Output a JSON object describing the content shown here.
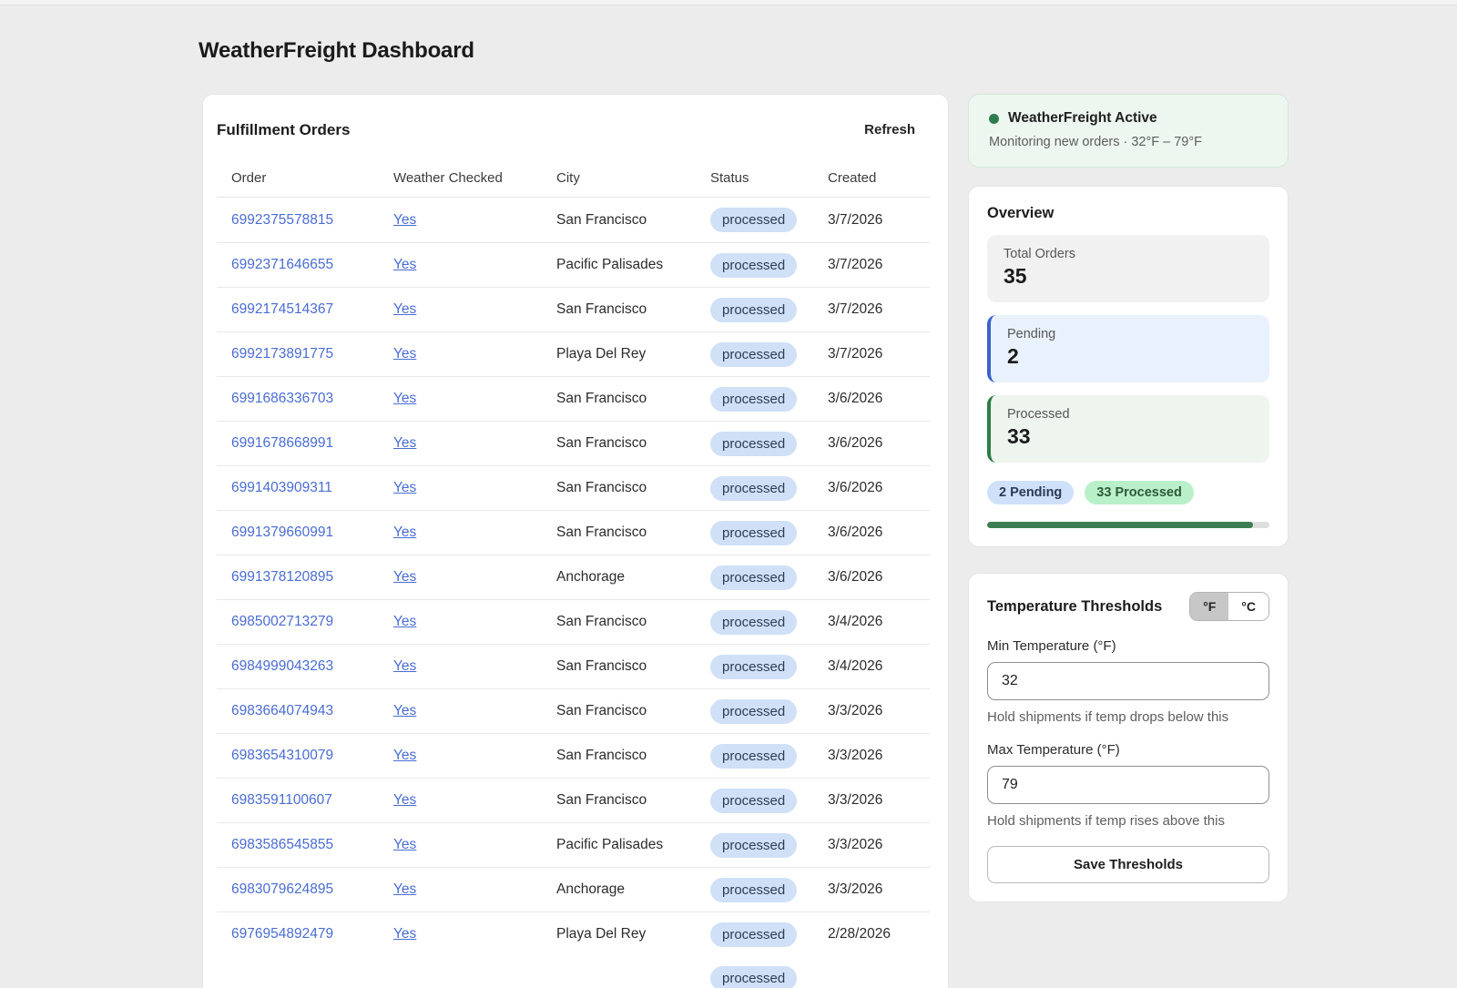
{
  "page": {
    "title": "WeatherFreight Dashboard"
  },
  "orders_panel": {
    "title": "Fulfillment Orders",
    "refresh_label": "Refresh",
    "columns": [
      "Order",
      "Weather Checked",
      "City",
      "Status",
      "Created"
    ],
    "rows": [
      {
        "order": "6992375578815",
        "weather_checked": "Yes",
        "city": "San Francisco",
        "status": "processed",
        "created": "3/7/2026"
      },
      {
        "order": "6992371646655",
        "weather_checked": "Yes",
        "city": "Pacific Palisades",
        "status": "processed",
        "created": "3/7/2026"
      },
      {
        "order": "6992174514367",
        "weather_checked": "Yes",
        "city": "San Francisco",
        "status": "processed",
        "created": "3/7/2026"
      },
      {
        "order": "6992173891775",
        "weather_checked": "Yes",
        "city": "Playa Del Rey",
        "status": "processed",
        "created": "3/7/2026"
      },
      {
        "order": "6991686336703",
        "weather_checked": "Yes",
        "city": "San Francisco",
        "status": "processed",
        "created": "3/6/2026"
      },
      {
        "order": "6991678668991",
        "weather_checked": "Yes",
        "city": "San Francisco",
        "status": "processed",
        "created": "3/6/2026"
      },
      {
        "order": "6991403909311",
        "weather_checked": "Yes",
        "city": "San Francisco",
        "status": "processed",
        "created": "3/6/2026"
      },
      {
        "order": "6991379660991",
        "weather_checked": "Yes",
        "city": "San Francisco",
        "status": "processed",
        "created": "3/6/2026"
      },
      {
        "order": "6991378120895",
        "weather_checked": "Yes",
        "city": "Anchorage",
        "status": "processed",
        "created": "3/6/2026"
      },
      {
        "order": "6985002713279",
        "weather_checked": "Yes",
        "city": "San Francisco",
        "status": "processed",
        "created": "3/4/2026"
      },
      {
        "order": "6984999043263",
        "weather_checked": "Yes",
        "city": "San Francisco",
        "status": "processed",
        "created": "3/4/2026"
      },
      {
        "order": "6983664074943",
        "weather_checked": "Yes",
        "city": "San Francisco",
        "status": "processed",
        "created": "3/3/2026"
      },
      {
        "order": "6983654310079",
        "weather_checked": "Yes",
        "city": "San Francisco",
        "status": "processed",
        "created": "3/3/2026"
      },
      {
        "order": "6983591100607",
        "weather_checked": "Yes",
        "city": "San Francisco",
        "status": "processed",
        "created": "3/3/2026"
      },
      {
        "order": "6983586545855",
        "weather_checked": "Yes",
        "city": "Pacific Palisades",
        "status": "processed",
        "created": "3/3/2026"
      },
      {
        "order": "6983079624895",
        "weather_checked": "Yes",
        "city": "Anchorage",
        "status": "processed",
        "created": "3/3/2026"
      },
      {
        "order": "6976954892479",
        "weather_checked": "Yes",
        "city": "Playa Del Rey",
        "status": "processed",
        "created": "2/28/2026"
      }
    ],
    "partial_row": {
      "status": "processed"
    }
  },
  "status_card": {
    "title": "WeatherFreight Active",
    "subtitle": "Monitoring new orders · 32°F – 79°F",
    "dot_color": "#2e7d4f"
  },
  "overview": {
    "title": "Overview",
    "stats": [
      {
        "label": "Total Orders",
        "value": "35",
        "variant": "neutral"
      },
      {
        "label": "Pending",
        "value": "2",
        "variant": "pending"
      },
      {
        "label": "Processed",
        "value": "33",
        "variant": "processed"
      }
    ],
    "badges": [
      {
        "label": "2 Pending",
        "variant": "pending"
      },
      {
        "label": "33 Processed",
        "variant": "processed"
      }
    ],
    "progress_percent": 94.3
  },
  "thresholds": {
    "title": "Temperature Thresholds",
    "unit_toggle": {
      "options": [
        "°F",
        "°C"
      ],
      "selected": "°F"
    },
    "min": {
      "label": "Min Temperature (°F)",
      "value": "32",
      "helper": "Hold shipments if temp drops below this"
    },
    "max": {
      "label": "Max Temperature (°F)",
      "value": "79",
      "helper": "Hold shipments if temp rises above this"
    },
    "save_label": "Save Thresholds"
  },
  "colors": {
    "page_background": "#ececec",
    "link_blue": "#4a6cd3",
    "status_badge_bg": "#cfe0f7",
    "pending_accent": "#3a62c9",
    "processed_accent": "#2e7d46",
    "progress_fill": "#3c7d52"
  }
}
